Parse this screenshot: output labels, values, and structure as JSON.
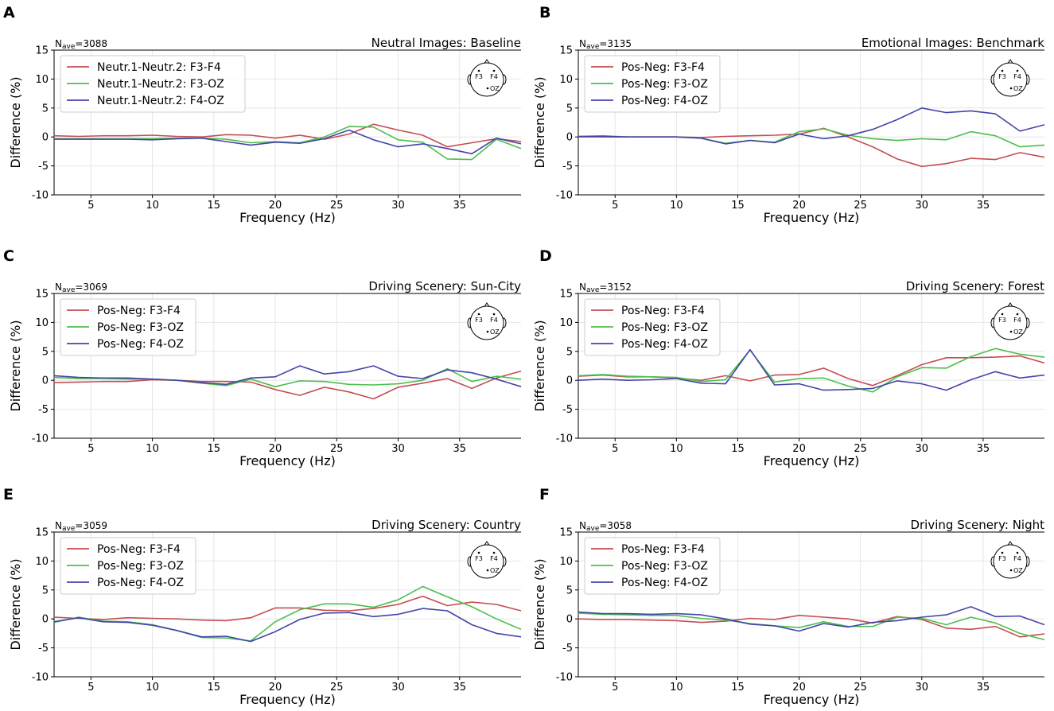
{
  "figure": {
    "xlabel": "Frequency (Hz)",
    "ylabel": "Difference (%)",
    "xticks": [
      5,
      10,
      15,
      20,
      25,
      30,
      35
    ],
    "yticks": [
      -10,
      -5,
      0,
      5,
      10,
      15
    ],
    "head_labels": [
      "F3",
      "F4",
      "OZ"
    ],
    "colors": {
      "F3-F4": "#c44e52",
      "F3-OZ": "#4bbf4b",
      "F4-OZ": "#4444aa"
    }
  },
  "chart_data": [
    {
      "type": "line",
      "panel_label": "A",
      "title": "Neutral Images: Baseline",
      "nave_prefix": "N",
      "nave_sub": "ave",
      "nave_value": "=3088",
      "xlabel": "Frequency (Hz)",
      "ylabel": "Difference (%)",
      "xlim": [
        2,
        40
      ],
      "ylim": [
        -10,
        15
      ],
      "x": [
        2,
        4,
        6,
        8,
        10,
        12,
        14,
        16,
        18,
        20,
        22,
        24,
        26,
        28,
        30,
        32,
        34,
        36,
        38,
        40
      ],
      "series": [
        {
          "name": "Neutr.1-Neutr.2: F3-F4",
          "color": "#c44e52",
          "values": [
            0.2,
            0.1,
            0.2,
            0.2,
            0.3,
            0.1,
            0.0,
            0.4,
            0.3,
            -0.2,
            0.3,
            -0.4,
            0.5,
            2.2,
            1.2,
            0.3,
            -1.7,
            -1.0,
            -0.3,
            -0.8
          ]
        },
        {
          "name": "Neutr.1-Neutr.2: F3-OZ",
          "color": "#4bbf4b",
          "values": [
            -0.3,
            -0.3,
            -0.3,
            -0.3,
            -0.3,
            -0.2,
            -0.2,
            -0.4,
            -1.0,
            -0.8,
            -1.0,
            0.0,
            1.8,
            1.7,
            -0.5,
            -0.9,
            -3.8,
            -3.9,
            -0.4,
            -2.0
          ]
        },
        {
          "name": "Neutr.1-Neutr.2: F4-OZ",
          "color": "#4444aa",
          "values": [
            -0.4,
            -0.4,
            -0.4,
            -0.4,
            -0.5,
            -0.3,
            -0.2,
            -0.8,
            -1.4,
            -0.9,
            -1.1,
            -0.3,
            1.2,
            -0.5,
            -1.7,
            -1.2,
            -2.0,
            -2.9,
            -0.2,
            -1.2
          ]
        }
      ]
    },
    {
      "type": "line",
      "panel_label": "B",
      "title": "Emotional Images: Benchmark",
      "nave_prefix": "N",
      "nave_sub": "ave",
      "nave_value": "=3135",
      "xlabel": "Frequency (Hz)",
      "ylabel": "Difference (%)",
      "xlim": [
        2,
        40
      ],
      "ylim": [
        -10,
        15
      ],
      "x": [
        2,
        4,
        6,
        8,
        10,
        12,
        14,
        16,
        18,
        20,
        22,
        24,
        26,
        28,
        30,
        32,
        34,
        36,
        38,
        40
      ],
      "series": [
        {
          "name": "Pos-Neg: F3-F4",
          "color": "#c44e52",
          "values": [
            0.0,
            0.0,
            0.0,
            0.0,
            0.0,
            -0.1,
            0.1,
            0.2,
            0.3,
            0.5,
            1.5,
            0.0,
            -1.7,
            -3.8,
            -5.1,
            -4.6,
            -3.7,
            -3.9,
            -2.7,
            -3.5
          ]
        },
        {
          "name": "Pos-Neg: F3-OZ",
          "color": "#4bbf4b",
          "values": [
            0.1,
            0.2,
            0.0,
            0.0,
            0.0,
            -0.2,
            -1.1,
            -0.6,
            -0.9,
            0.9,
            1.4,
            0.3,
            -0.3,
            -0.6,
            -0.3,
            -0.5,
            0.9,
            0.2,
            -1.7,
            -1.4
          ]
        },
        {
          "name": "Pos-Neg: F4-OZ",
          "color": "#4444aa",
          "values": [
            0.1,
            0.1,
            0.0,
            0.0,
            0.0,
            -0.2,
            -1.2,
            -0.6,
            -1.0,
            0.5,
            -0.3,
            0.2,
            1.3,
            3.0,
            5.0,
            4.2,
            4.5,
            4.0,
            1.0,
            2.1
          ]
        }
      ]
    },
    {
      "type": "line",
      "panel_label": "C",
      "title": "Driving Scenery: Sun-City",
      "nave_prefix": "N",
      "nave_sub": "ave",
      "nave_value": "=3069",
      "xlabel": "Frequency (Hz)",
      "ylabel": "Difference (%)",
      "xlim": [
        2,
        40
      ],
      "ylim": [
        -10,
        15
      ],
      "x": [
        2,
        4,
        6,
        8,
        10,
        12,
        14,
        16,
        18,
        20,
        22,
        24,
        26,
        28,
        30,
        32,
        34,
        36,
        38,
        40
      ],
      "series": [
        {
          "name": "Pos-Neg: F3-F4",
          "color": "#c44e52",
          "values": [
            -0.4,
            -0.3,
            -0.2,
            -0.2,
            0.1,
            0.0,
            -0.2,
            -0.2,
            -0.3,
            -1.6,
            -2.6,
            -1.2,
            -2.0,
            -3.2,
            -1.2,
            -0.5,
            0.3,
            -1.4,
            0.4,
            1.6
          ]
        },
        {
          "name": "Pos-Neg: F3-OZ",
          "color": "#4bbf4b",
          "values": [
            0.5,
            0.3,
            0.3,
            0.2,
            0.2,
            0.0,
            -0.5,
            -0.9,
            0.2,
            -1.1,
            -0.1,
            -0.2,
            -0.7,
            -0.8,
            -0.6,
            0.0,
            2.0,
            -0.2,
            0.7,
            0.2
          ]
        },
        {
          "name": "Pos-Neg: F4-OZ",
          "color": "#4444aa",
          "values": [
            0.8,
            0.5,
            0.4,
            0.4,
            0.2,
            0.0,
            -0.4,
            -0.7,
            0.4,
            0.6,
            2.5,
            1.1,
            1.5,
            2.5,
            0.7,
            0.3,
            1.8,
            1.3,
            0.2,
            -1.1
          ]
        }
      ]
    },
    {
      "type": "line",
      "panel_label": "D",
      "title": "Driving Scenery: Forest",
      "nave_prefix": "N",
      "nave_sub": "ave",
      "nave_value": "=3152",
      "xlabel": "Frequency (Hz)",
      "ylabel": "Difference (%)",
      "xlim": [
        2,
        40
      ],
      "ylim": [
        -10,
        15
      ],
      "x": [
        2,
        4,
        6,
        8,
        10,
        12,
        14,
        16,
        18,
        20,
        22,
        24,
        26,
        28,
        30,
        32,
        34,
        36,
        38,
        40
      ],
      "series": [
        {
          "name": "Pos-Neg: F3-F4",
          "color": "#c44e52",
          "values": [
            0.7,
            0.9,
            0.6,
            0.6,
            0.4,
            0.0,
            0.8,
            -0.1,
            0.9,
            1.0,
            2.1,
            0.3,
            -0.9,
            0.8,
            2.7,
            3.9,
            3.9,
            4.0,
            4.2,
            3.0
          ]
        },
        {
          "name": "Pos-Neg: F3-OZ",
          "color": "#4bbf4b",
          "values": [
            0.8,
            1.0,
            0.7,
            0.6,
            0.5,
            -0.2,
            0.1,
            5.2,
            -0.3,
            0.3,
            0.4,
            -1.0,
            -2.0,
            0.6,
            2.2,
            2.1,
            4.1,
            5.5,
            4.5,
            4.0
          ]
        },
        {
          "name": "Pos-Neg: F4-OZ",
          "color": "#4444aa",
          "values": [
            0.0,
            0.2,
            0.0,
            0.1,
            0.3,
            -0.5,
            -0.6,
            5.3,
            -0.8,
            -0.6,
            -1.7,
            -1.6,
            -1.4,
            -0.1,
            -0.6,
            -1.7,
            0.1,
            1.5,
            0.4,
            0.9
          ]
        }
      ]
    },
    {
      "type": "line",
      "panel_label": "E",
      "title": "Driving Scenery: Country",
      "nave_prefix": "N",
      "nave_sub": "ave",
      "nave_value": "=3059",
      "xlabel": "Frequency (Hz)",
      "ylabel": "Difference (%)",
      "xlim": [
        2,
        40
      ],
      "ylim": [
        -10,
        15
      ],
      "x": [
        2,
        4,
        6,
        8,
        10,
        12,
        14,
        16,
        18,
        20,
        22,
        24,
        26,
        28,
        30,
        32,
        34,
        36,
        38,
        40
      ],
      "series": [
        {
          "name": "Pos-Neg: F3-F4",
          "color": "#c44e52",
          "values": [
            0.3,
            0.1,
            -0.1,
            0.2,
            0.1,
            0.0,
            -0.2,
            -0.3,
            0.2,
            1.9,
            1.9,
            1.5,
            1.4,
            1.8,
            2.5,
            3.9,
            2.3,
            2.9,
            2.5,
            1.4
          ]
        },
        {
          "name": "Pos-Neg: F3-OZ",
          "color": "#4bbf4b",
          "values": [
            -0.6,
            0.3,
            -0.4,
            -0.5,
            -1.0,
            -2.0,
            -3.2,
            -3.3,
            -3.8,
            -0.5,
            1.6,
            2.6,
            2.6,
            2.0,
            3.3,
            5.6,
            3.8,
            2.1,
            0.0,
            -1.8
          ]
        },
        {
          "name": "Pos-Neg: F4-OZ",
          "color": "#4444aa",
          "values": [
            -0.5,
            0.2,
            -0.5,
            -0.6,
            -1.1,
            -2.0,
            -3.1,
            -3.0,
            -3.9,
            -2.2,
            -0.1,
            1.0,
            1.1,
            0.4,
            0.8,
            1.8,
            1.4,
            -1.0,
            -2.5,
            -3.1
          ]
        }
      ]
    },
    {
      "type": "line",
      "panel_label": "F",
      "title": "Driving Scenery: Night",
      "nave_prefix": "N",
      "nave_sub": "ave",
      "nave_value": "=3058",
      "xlabel": "Frequency (Hz)",
      "ylabel": "Difference (%)",
      "xlim": [
        2,
        40
      ],
      "ylim": [
        -10,
        15
      ],
      "x": [
        2,
        4,
        6,
        8,
        10,
        12,
        14,
        16,
        18,
        20,
        22,
        24,
        26,
        28,
        30,
        32,
        34,
        36,
        38,
        40
      ],
      "series": [
        {
          "name": "Pos-Neg: F3-F4",
          "color": "#c44e52",
          "values": [
            0.0,
            -0.1,
            -0.1,
            -0.2,
            -0.3,
            -0.6,
            -0.4,
            0.1,
            -0.1,
            0.6,
            0.3,
            0.0,
            -0.7,
            0.4,
            -0.1,
            -1.6,
            -1.8,
            -1.3,
            -3.1,
            -2.6
          ]
        },
        {
          "name": "Pos-Neg: F3-OZ",
          "color": "#4bbf4b",
          "values": [
            1.0,
            0.8,
            0.7,
            0.6,
            0.6,
            0.1,
            -0.2,
            -0.8,
            -1.2,
            -1.5,
            -0.5,
            -1.3,
            -1.3,
            0.3,
            0.1,
            -1.0,
            0.3,
            -0.7,
            -2.5,
            -3.6
          ]
        },
        {
          "name": "Pos-Neg: F4-OZ",
          "color": "#4444aa",
          "values": [
            1.2,
            0.9,
            0.9,
            0.8,
            0.9,
            0.7,
            0.0,
            -0.9,
            -1.2,
            -2.1,
            -0.8,
            -1.4,
            -0.6,
            -0.3,
            0.3,
            0.7,
            2.1,
            0.4,
            0.5,
            -1.0
          ]
        }
      ]
    }
  ]
}
